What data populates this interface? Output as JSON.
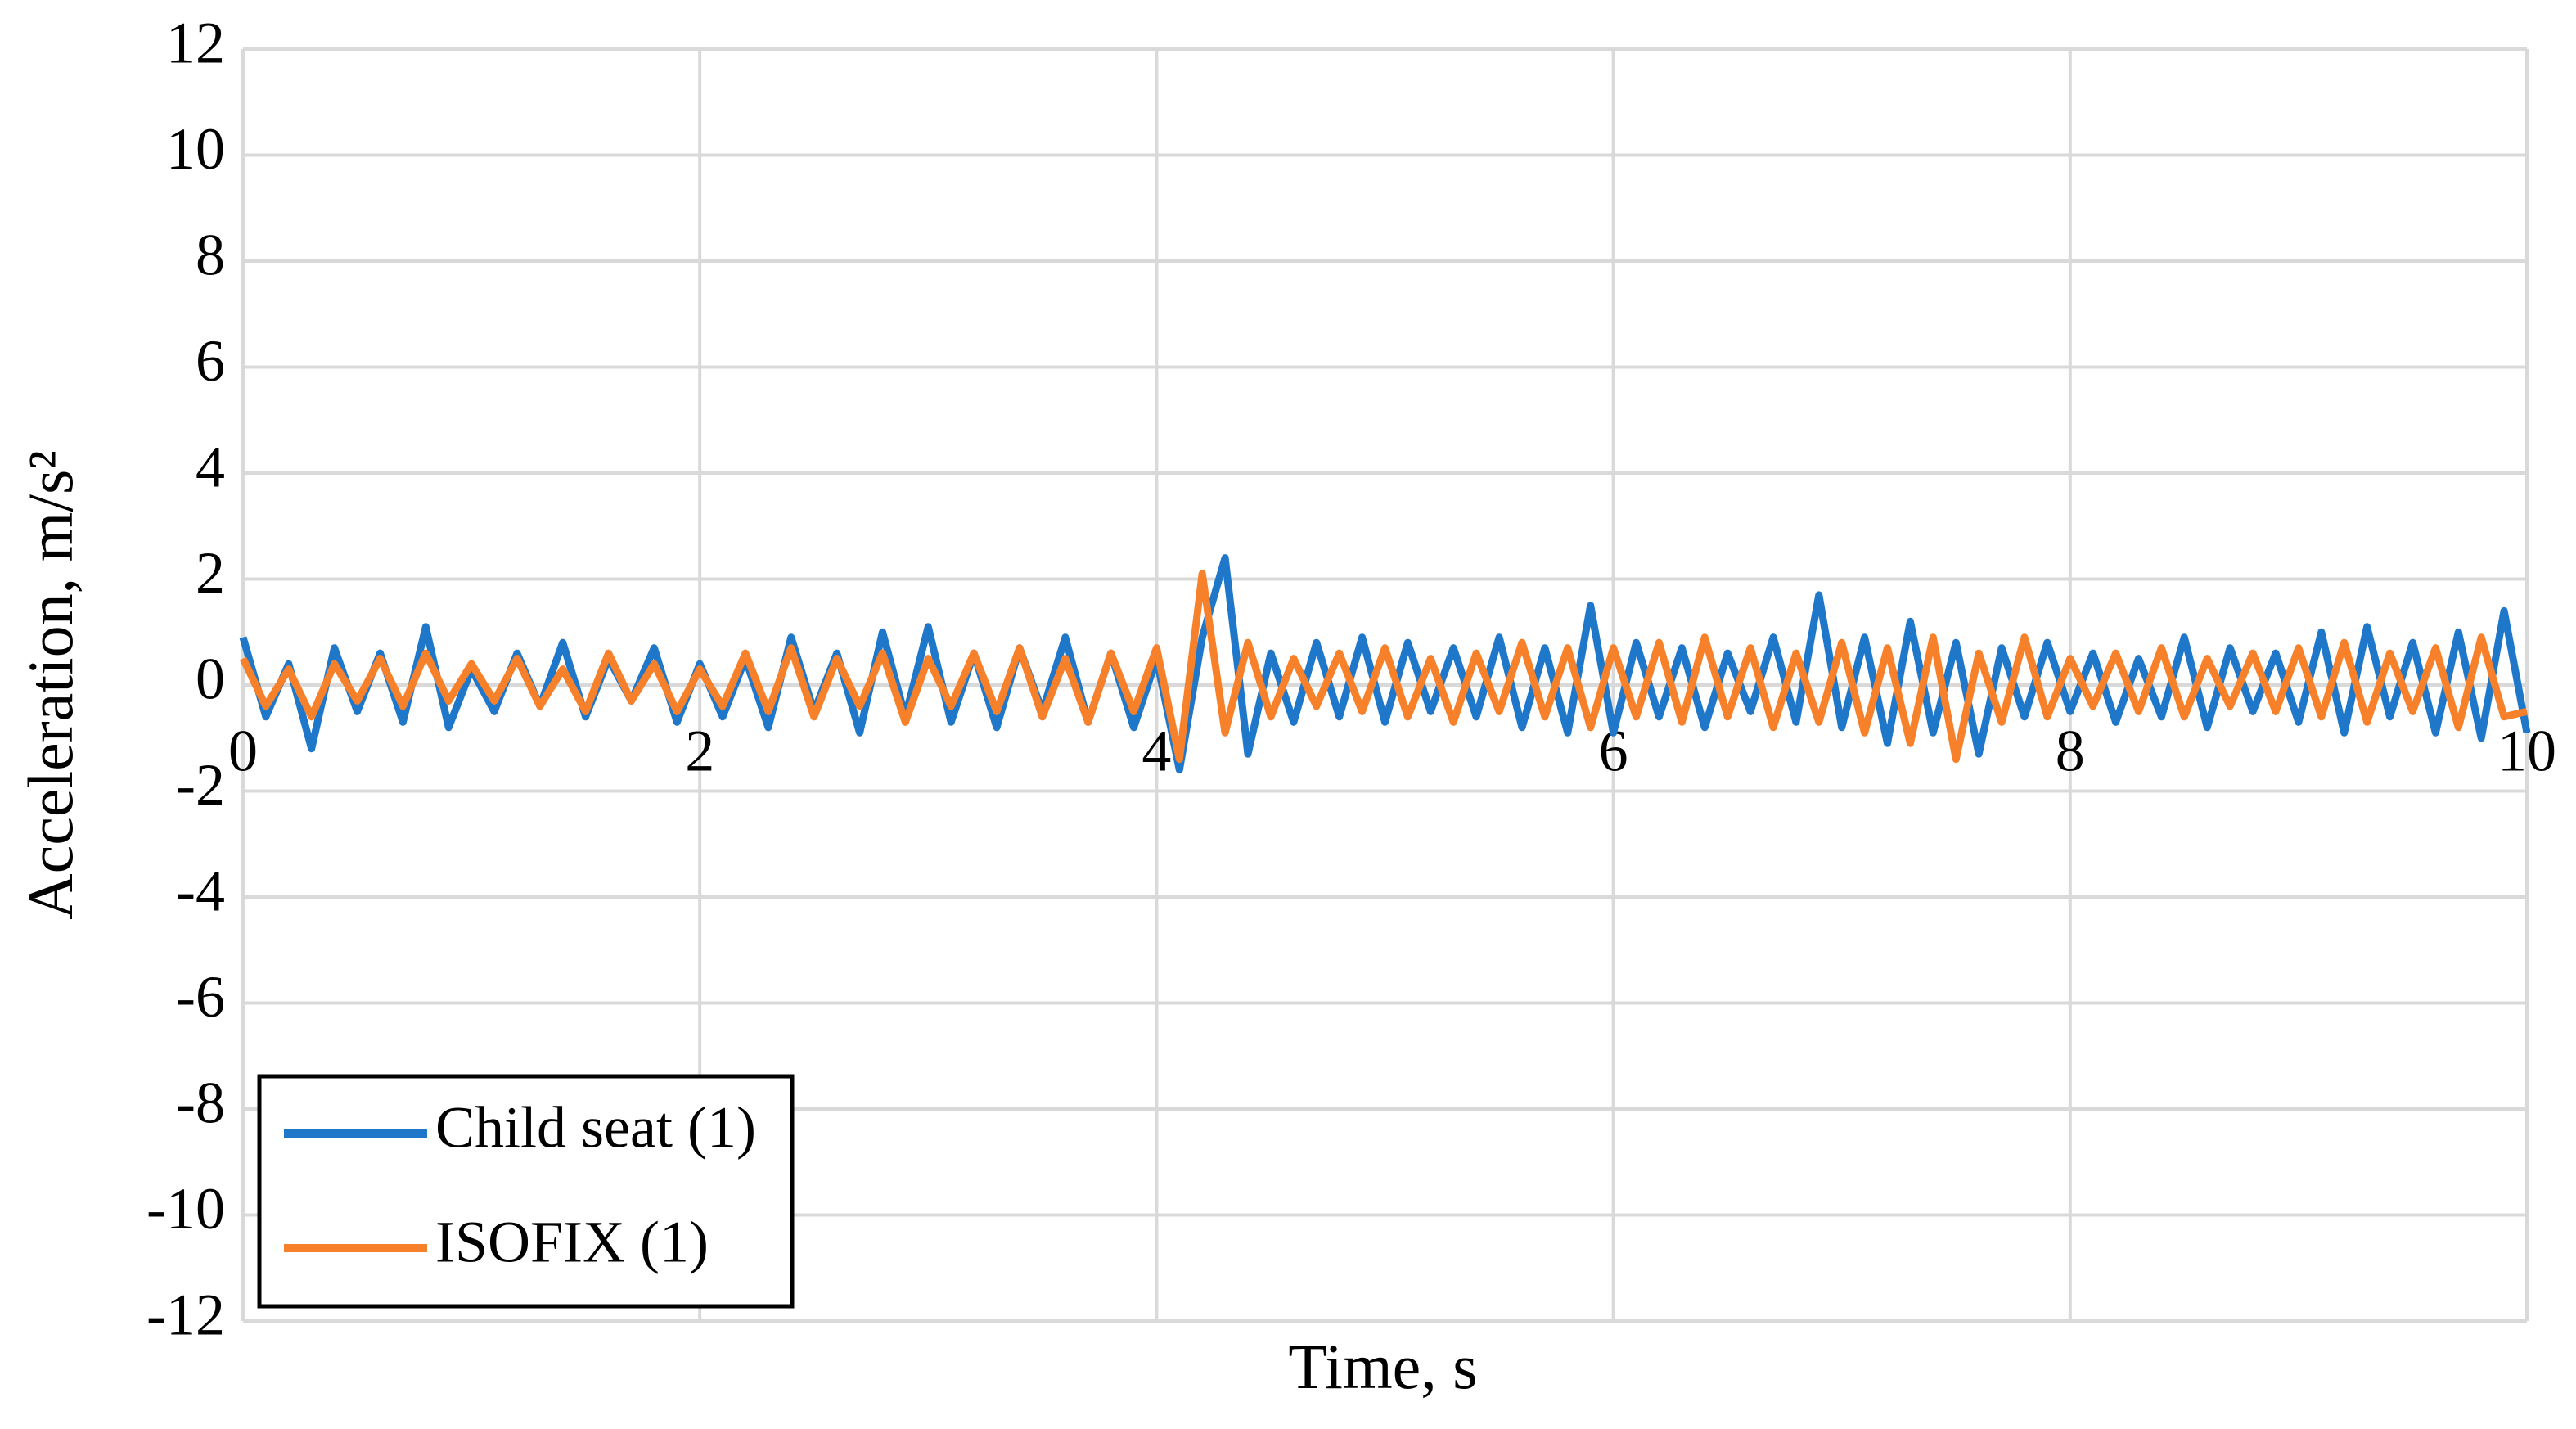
{
  "chart_data": {
    "type": "line",
    "xlabel": "Time, s",
    "ylabel": "Acceleration, m/s²",
    "x": [
      0,
      0.1,
      0.2,
      0.3,
      0.4,
      0.5,
      0.6,
      0.7,
      0.8,
      0.9,
      1,
      1.1,
      1.2,
      1.3,
      1.4,
      1.5,
      1.6,
      1.7,
      1.8,
      1.9,
      2,
      2.1,
      2.2,
      2.3,
      2.4,
      2.5,
      2.6,
      2.7,
      2.8,
      2.9,
      3,
      3.1,
      3.2,
      3.3,
      3.4,
      3.5,
      3.6,
      3.7,
      3.8,
      3.9,
      4,
      4.1,
      4.2,
      4.3,
      4.4,
      4.5,
      4.6,
      4.7,
      4.8,
      4.9,
      5,
      5.1,
      5.2,
      5.3,
      5.4,
      5.5,
      5.6,
      5.7,
      5.8,
      5.9,
      6,
      6.1,
      6.2,
      6.3,
      6.4,
      6.5,
      6.6,
      6.7,
      6.8,
      6.9,
      7,
      7.1,
      7.2,
      7.3,
      7.4,
      7.5,
      7.6,
      7.7,
      7.8,
      7.9,
      8,
      8.1,
      8.2,
      8.3,
      8.4,
      8.5,
      8.6,
      8.7,
      8.8,
      8.9,
      9,
      9.1,
      9.2,
      9.3,
      9.4,
      9.5,
      9.6,
      9.7,
      9.8,
      9.9,
      10
    ],
    "series": [
      {
        "name": "Child seat (1)",
        "color": "#1f77c9",
        "values": [
          0.9,
          -0.6,
          0.4,
          -1.2,
          0.7,
          -0.5,
          0.6,
          -0.7,
          1.1,
          -0.8,
          0.3,
          -0.5,
          0.6,
          -0.4,
          0.8,
          -0.6,
          0.5,
          -0.3,
          0.7,
          -0.7,
          0.4,
          -0.6,
          0.5,
          -0.8,
          0.9,
          -0.5,
          0.6,
          -0.9,
          1.0,
          -0.6,
          1.1,
          -0.7,
          0.6,
          -0.8,
          0.7,
          -0.5,
          0.9,
          -0.7,
          0.6,
          -0.8,
          0.5,
          -1.6,
          0.9,
          2.4,
          -1.3,
          0.6,
          -0.7,
          0.8,
          -0.6,
          0.9,
          -0.7,
          0.8,
          -0.5,
          0.7,
          -0.6,
          0.9,
          -0.8,
          0.7,
          -0.9,
          1.5,
          -0.9,
          0.8,
          -0.6,
          0.7,
          -0.8,
          0.6,
          -0.5,
          0.9,
          -0.7,
          1.7,
          -0.8,
          0.9,
          -1.1,
          1.2,
          -0.9,
          0.8,
          -1.3,
          0.7,
          -0.6,
          0.8,
          -0.5,
          0.6,
          -0.7,
          0.5,
          -0.6,
          0.9,
          -0.8,
          0.7,
          -0.5,
          0.6,
          -0.7,
          1.0,
          -0.9,
          1.1,
          -0.6,
          0.8,
          -0.9,
          1.0,
          -1.0,
          1.4,
          -0.9
        ]
      },
      {
        "name": "ISOFIX (1)",
        "color": "#f7802a",
        "values": [
          0.5,
          -0.4,
          0.3,
          -0.6,
          0.4,
          -0.3,
          0.5,
          -0.4,
          0.6,
          -0.3,
          0.4,
          -0.3,
          0.5,
          -0.4,
          0.3,
          -0.5,
          0.6,
          -0.3,
          0.4,
          -0.5,
          0.3,
          -0.4,
          0.6,
          -0.5,
          0.7,
          -0.6,
          0.5,
          -0.4,
          0.6,
          -0.7,
          0.5,
          -0.4,
          0.6,
          -0.5,
          0.7,
          -0.6,
          0.5,
          -0.7,
          0.6,
          -0.5,
          0.7,
          -1.4,
          2.1,
          -0.9,
          0.8,
          -0.6,
          0.5,
          -0.4,
          0.6,
          -0.5,
          0.7,
          -0.6,
          0.5,
          -0.7,
          0.6,
          -0.5,
          0.8,
          -0.6,
          0.7,
          -0.8,
          0.7,
          -0.6,
          0.8,
          -0.7,
          0.9,
          -0.6,
          0.7,
          -0.8,
          0.6,
          -0.7,
          0.8,
          -0.9,
          0.7,
          -1.1,
          0.9,
          -1.4,
          0.6,
          -0.7,
          0.9,
          -0.6,
          0.5,
          -0.4,
          0.6,
          -0.5,
          0.7,
          -0.6,
          0.5,
          -0.4,
          0.6,
          -0.5,
          0.7,
          -0.6,
          0.8,
          -0.7,
          0.6,
          -0.5,
          0.7,
          -0.8,
          0.9,
          -0.6,
          -0.5
        ]
      }
    ],
    "xlim": [
      0,
      10
    ],
    "xticks": [
      0,
      2,
      4,
      6,
      8,
      10
    ],
    "ylim": [
      -12,
      12
    ],
    "yticks": [
      -12,
      -10,
      -8,
      -6,
      -4,
      -2,
      0,
      2,
      4,
      6,
      8,
      10,
      12
    ],
    "grid": true,
    "legend": "lower left"
  }
}
